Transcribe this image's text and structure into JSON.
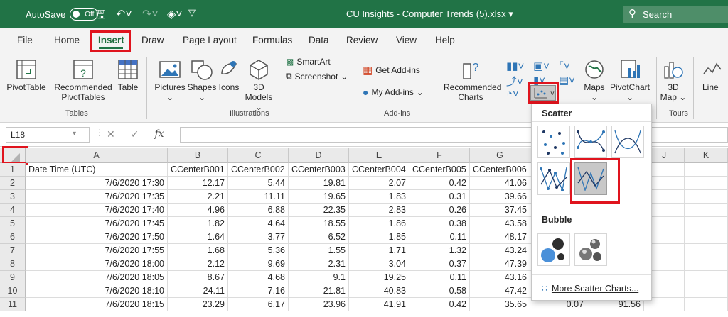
{
  "titlebar": {
    "autosave_label": "AutoSave",
    "autosave_state": "Off",
    "document_title": "CU Insights - Computer Trends (5).xlsx",
    "search_label": "Search",
    "accent_color": "#217346"
  },
  "menu_tabs": [
    "File",
    "Home",
    "Insert",
    "Draw",
    "Page Layout",
    "Formulas",
    "Data",
    "Review",
    "View",
    "Help"
  ],
  "active_tab": "Insert",
  "ribbon": {
    "pivottable": "PivotTable",
    "recommended_pivottables_1": "Recommended",
    "recommended_pivottables_2": "PivotTables",
    "table": "Table",
    "group_tables": "Tables",
    "pictures": "Pictures",
    "shapes": "Shapes",
    "icons": "Icons",
    "models_1": "3D",
    "models_2": "Models",
    "smartart": "SmartArt",
    "screenshot": "Screenshot",
    "group_illustrations": "Illustrations",
    "get_addins": "Get Add-ins",
    "my_addins": "My Add-ins",
    "group_addins": "Add-ins",
    "recommended_charts_1": "Recommended",
    "recommended_charts_2": "Charts",
    "maps": "Maps",
    "pivotchart": "PivotChart",
    "map3d_1": "3D",
    "map3d_2": "Map",
    "group_tours": "Tours",
    "line": "Line"
  },
  "formula_bar": {
    "name_box": "L18",
    "fx_label": "fx",
    "formula": ""
  },
  "grid": {
    "columns": [
      "A",
      "B",
      "C",
      "D",
      "E",
      "F",
      "G",
      "H",
      "I",
      "J",
      "K"
    ],
    "rows": [
      {
        "n": "1",
        "cells": [
          "Date Time (UTC)",
          "CCenterB001",
          "CCenterB002",
          "CCenterB003",
          "CCenterB004",
          "CCenterB005",
          "CCenterB006",
          "C",
          "",
          "",
          ""
        ]
      },
      {
        "n": "2",
        "cells": [
          "7/6/2020 17:30",
          "12.17",
          "5.44",
          "19.81",
          "2.07",
          "0.42",
          "41.06",
          "",
          "",
          "",
          ""
        ]
      },
      {
        "n": "3",
        "cells": [
          "7/6/2020 17:35",
          "2.21",
          "11.11",
          "19.65",
          "1.83",
          "0.31",
          "39.66",
          "",
          "",
          "",
          ""
        ]
      },
      {
        "n": "4",
        "cells": [
          "7/6/2020 17:40",
          "4.96",
          "6.88",
          "22.35",
          "2.83",
          "0.26",
          "37.45",
          "",
          "",
          "",
          ""
        ]
      },
      {
        "n": "5",
        "cells": [
          "7/6/2020 17:45",
          "1.82",
          "4.64",
          "18.55",
          "1.86",
          "0.38",
          "43.58",
          "",
          "",
          "",
          ""
        ]
      },
      {
        "n": "6",
        "cells": [
          "7/6/2020 17:50",
          "1.64",
          "3.77",
          "6.52",
          "1.85",
          "0.11",
          "48.17",
          "",
          "",
          "",
          ""
        ]
      },
      {
        "n": "7",
        "cells": [
          "7/6/2020 17:55",
          "1.68",
          "5.36",
          "1.55",
          "1.71",
          "1.32",
          "43.24",
          "",
          "",
          "",
          ""
        ]
      },
      {
        "n": "8",
        "cells": [
          "7/6/2020 18:00",
          "2.12",
          "9.69",
          "2.31",
          "3.04",
          "0.37",
          "47.39",
          "",
          "",
          "",
          ""
        ]
      },
      {
        "n": "9",
        "cells": [
          "7/6/2020 18:05",
          "8.67",
          "4.68",
          "9.1",
          "19.25",
          "0.11",
          "43.16",
          "",
          "",
          "",
          ""
        ]
      },
      {
        "n": "10",
        "cells": [
          "7/6/2020 18:10",
          "24.11",
          "7.16",
          "21.81",
          "40.83",
          "0.58",
          "47.42",
          "",
          "",
          "",
          ""
        ]
      },
      {
        "n": "11",
        "cells": [
          "7/6/2020 18:15",
          "23.29",
          "6.17",
          "23.96",
          "41.91",
          "0.42",
          "35.65",
          "0.07",
          "91.56",
          "",
          ""
        ]
      }
    ]
  },
  "scatter_dropdown": {
    "scatter_header": "Scatter",
    "bubble_header": "Bubble",
    "more_link": "More Scatter Charts...",
    "scatter_types": [
      "scatter-markers",
      "scatter-smooth-lines-markers",
      "scatter-smooth-lines",
      "scatter-straight-lines-markers",
      "scatter-straight-lines"
    ],
    "selected_type": "scatter-straight-lines",
    "bubble_types": [
      "bubble",
      "3d-bubble"
    ]
  },
  "highlight_color": "#e0141e"
}
